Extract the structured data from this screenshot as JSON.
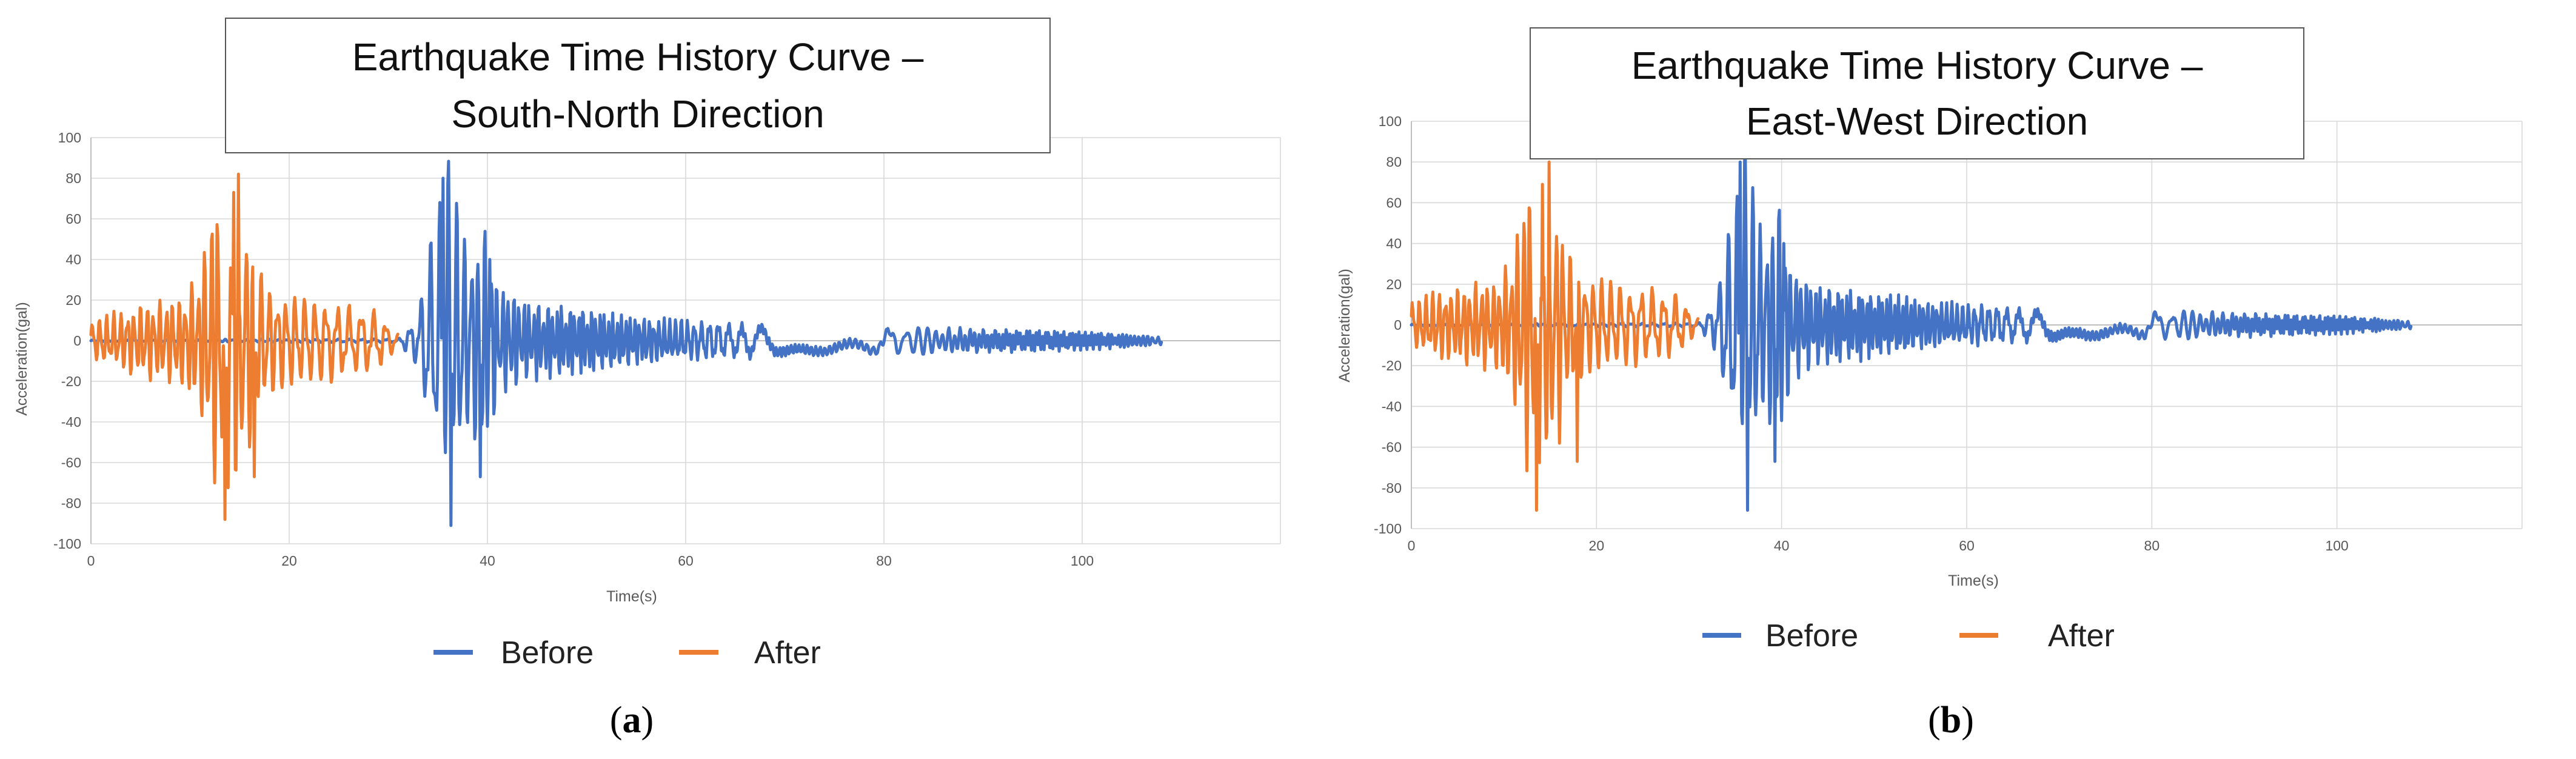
{
  "figure": {
    "panel_labels": [
      "a",
      "b"
    ]
  },
  "chart_data": [
    {
      "type": "line",
      "title_line1": "Earthquake Time History Curve –",
      "title_line2": "South-North Direction",
      "xlabel": "Time(s)",
      "ylabel": "Acceleration(gal)",
      "xlim": [
        0,
        120
      ],
      "ylim": [
        -100,
        100
      ],
      "x_ticks": [
        "0",
        "20",
        "40",
        "60",
        "80",
        "100"
      ],
      "y_ticks": [
        "100",
        "80",
        "60",
        "40",
        "20",
        "0",
        "-20",
        "-40",
        "-60",
        "-80",
        "-100"
      ],
      "grid": true,
      "legend_position": "bottom",
      "series": [
        {
          "name": "Before",
          "color": "#4472C4",
          "x_start": 0,
          "x_end": 108,
          "envelope": [
            [
              0,
              0.5
            ],
            [
              31,
              1
            ],
            [
              33,
              14
            ],
            [
              34,
              45
            ],
            [
              35,
              62
            ],
            [
              36,
              88
            ],
            [
              37,
              70
            ],
            [
              38,
              45
            ],
            [
              39,
              55
            ],
            [
              40,
              60
            ],
            [
              41,
              30
            ],
            [
              44,
              20
            ],
            [
              48,
              18
            ],
            [
              51,
              16
            ],
            [
              56,
              12
            ],
            [
              62,
              10
            ],
            [
              70,
              8
            ],
            [
              80,
              7
            ],
            [
              90,
              6
            ],
            [
              100,
              5
            ],
            [
              108,
              2
            ]
          ],
          "peaks": [
            [
              35.5,
              80
            ],
            [
              36.3,
              -91
            ],
            [
              39.3,
              -67
            ],
            [
              40.2,
              40
            ]
          ]
        },
        {
          "name": "After",
          "color": "#ED7D31",
          "x_start": 0,
          "x_end": 31,
          "envelope": [
            [
              0,
              10
            ],
            [
              3,
              15
            ],
            [
              6,
              20
            ],
            [
              9,
              22
            ],
            [
              11,
              35
            ],
            [
              12,
              65
            ],
            [
              13,
              82
            ],
            [
              14,
              80
            ],
            [
              15,
              75
            ],
            [
              16,
              55
            ],
            [
              17,
              35
            ],
            [
              19,
              25
            ],
            [
              22,
              22
            ],
            [
              26,
              18
            ],
            [
              29,
              15
            ],
            [
              31,
              3
            ]
          ],
          "peaks": [
            [
              13.5,
              -88
            ],
            [
              14.9,
              82
            ],
            [
              16.5,
              -67
            ],
            [
              14.4,
              73
            ]
          ]
        }
      ]
    },
    {
      "type": "line",
      "title_line1": "Earthquake Time History Curve –",
      "title_line2": "East-West Direction",
      "xlabel": "Time(s)",
      "ylabel": "Acceleration(gal)",
      "xlim": [
        0,
        120
      ],
      "ylim": [
        -100,
        100
      ],
      "x_ticks": [
        "0",
        "20",
        "40",
        "60",
        "80",
        "100"
      ],
      "y_ticks": [
        "100",
        "80",
        "60",
        "40",
        "20",
        "0",
        "-20",
        "-40",
        "-60",
        "-80",
        "-100"
      ],
      "grid": true,
      "legend_position": "bottom",
      "series": [
        {
          "name": "Before",
          "color": "#4472C4",
          "x_start": 0,
          "x_end": 108,
          "envelope": [
            [
              0,
              0.5
            ],
            [
              31,
              1
            ],
            [
              33,
              14
            ],
            [
              34,
              45
            ],
            [
              35,
              62
            ],
            [
              36,
              88
            ],
            [
              37,
              70
            ],
            [
              38,
              45
            ],
            [
              39,
              55
            ],
            [
              40,
              60
            ],
            [
              41,
              30
            ],
            [
              44,
              20
            ],
            [
              48,
              18
            ],
            [
              51,
              16
            ],
            [
              56,
              12
            ],
            [
              62,
              10
            ],
            [
              70,
              8
            ],
            [
              80,
              7
            ],
            [
              90,
              6
            ],
            [
              100,
              5
            ],
            [
              108,
              2
            ]
          ],
          "peaks": [
            [
              35.5,
              80
            ],
            [
              36.3,
              -91
            ],
            [
              39.3,
              -67
            ],
            [
              40.2,
              40
            ]
          ]
        },
        {
          "name": "After",
          "color": "#ED7D31",
          "x_start": 0,
          "x_end": 31,
          "envelope": [
            [
              0,
              12
            ],
            [
              3,
              17
            ],
            [
              6,
              20
            ],
            [
              9,
              22
            ],
            [
              11,
              35
            ],
            [
              12,
              65
            ],
            [
              13,
              80
            ],
            [
              14,
              80
            ],
            [
              15,
              75
            ],
            [
              16,
              55
            ],
            [
              17,
              35
            ],
            [
              19,
              25
            ],
            [
              22,
              22
            ],
            [
              26,
              18
            ],
            [
              29,
              15
            ],
            [
              31,
              3
            ]
          ],
          "peaks": [
            [
              13.5,
              -91
            ],
            [
              14.9,
              80
            ],
            [
              17.9,
              -67
            ],
            [
              14.2,
              69
            ]
          ]
        }
      ]
    }
  ]
}
